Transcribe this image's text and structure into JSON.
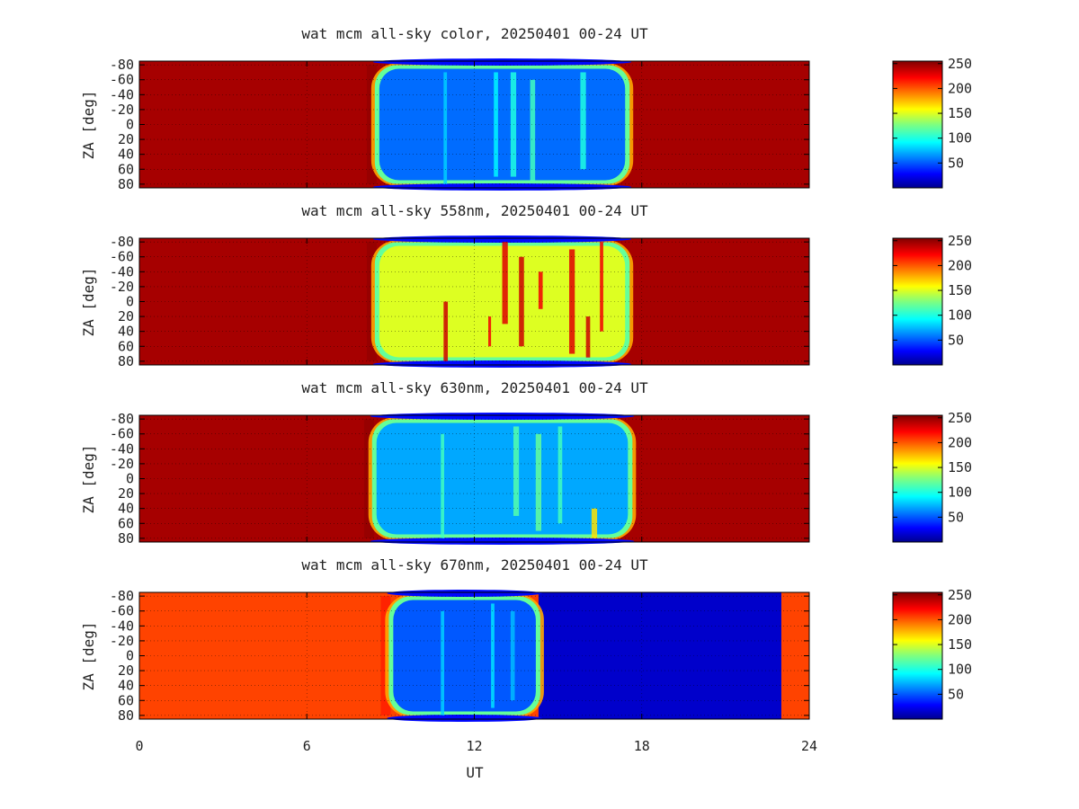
{
  "chart_data": [
    {
      "type": "heatmap",
      "title": "wat mcm all-sky color, 20250401 00-24 UT",
      "ylabel": "ZA [deg]",
      "xlim": [
        0,
        24
      ],
      "ylim": [
        -85,
        85
      ],
      "yticks": [
        "-80",
        "-60",
        "-40",
        "-20",
        "0",
        "20",
        "40",
        "60",
        "80"
      ],
      "colorbar": {
        "range": [
          0,
          255
        ],
        "ticks": [
          "250",
          "200",
          "150",
          "100",
          "50"
        ]
      },
      "outside_value": 245,
      "night_start": 8.5,
      "night_end": 17.5,
      "night_value": 55,
      "streaks": [
        {
          "x": 10.9,
          "w": 0.12,
          "y0": -70,
          "y1": 80,
          "v": 80
        },
        {
          "x": 12.7,
          "w": 0.15,
          "y0": -70,
          "y1": 70,
          "v": 90
        },
        {
          "x": 13.3,
          "w": 0.2,
          "y0": -70,
          "y1": 70,
          "v": 100
        },
        {
          "x": 14.0,
          "w": 0.18,
          "y0": -60,
          "y1": 75,
          "v": 110
        },
        {
          "x": 15.8,
          "w": 0.2,
          "y0": -70,
          "y1": 60,
          "v": 100
        }
      ]
    },
    {
      "type": "heatmap",
      "title": "wat mcm all-sky 558nm, 20250401 00-24 UT",
      "ylabel": "ZA [deg]",
      "xlim": [
        0,
        24
      ],
      "ylim": [
        -85,
        85
      ],
      "yticks": [
        "-80",
        "-60",
        "-40",
        "-20",
        "0",
        "20",
        "40",
        "60",
        "80"
      ],
      "colorbar": {
        "range": [
          0,
          255
        ],
        "ticks": [
          "250",
          "200",
          "150",
          "100",
          "50"
        ]
      },
      "outside_value": 245,
      "night_start": 8.5,
      "night_end": 17.5,
      "night_value": 150,
      "streaks": [
        {
          "x": 10.9,
          "w": 0.15,
          "y0": 0,
          "y1": 80,
          "v": 235
        },
        {
          "x": 12.5,
          "w": 0.1,
          "y0": 20,
          "y1": 60,
          "v": 225
        },
        {
          "x": 13.0,
          "w": 0.2,
          "y0": -80,
          "y1": 30,
          "v": 230
        },
        {
          "x": 13.6,
          "w": 0.18,
          "y0": -60,
          "y1": 60,
          "v": 235
        },
        {
          "x": 14.3,
          "w": 0.15,
          "y0": -40,
          "y1": 10,
          "v": 225
        },
        {
          "x": 15.4,
          "w": 0.2,
          "y0": -70,
          "y1": 70,
          "v": 230
        },
        {
          "x": 16.0,
          "w": 0.15,
          "y0": 20,
          "y1": 75,
          "v": 235
        },
        {
          "x": 16.5,
          "w": 0.12,
          "y0": -80,
          "y1": 40,
          "v": 225
        }
      ]
    },
    {
      "type": "heatmap",
      "title": "wat mcm all-sky 630nm, 20250401 00-24 UT",
      "ylabel": "ZA [deg]",
      "xlim": [
        0,
        24
      ],
      "ylim": [
        -85,
        85
      ],
      "yticks": [
        "-80",
        "-60",
        "-40",
        "-20",
        "0",
        "20",
        "40",
        "60",
        "80"
      ],
      "colorbar": {
        "range": [
          0,
          255
        ],
        "ticks": [
          "250",
          "200",
          "150",
          "100",
          "50"
        ]
      },
      "outside_value": 245,
      "night_start": 8.4,
      "night_end": 17.6,
      "night_value": 70,
      "streaks": [
        {
          "x": 10.8,
          "w": 0.12,
          "y0": -60,
          "y1": 80,
          "v": 110
        },
        {
          "x": 13.4,
          "w": 0.2,
          "y0": -70,
          "y1": 50,
          "v": 115
        },
        {
          "x": 14.2,
          "w": 0.2,
          "y0": -60,
          "y1": 70,
          "v": 120
        },
        {
          "x": 15.0,
          "w": 0.15,
          "y0": -70,
          "y1": 60,
          "v": 110
        },
        {
          "x": 16.2,
          "w": 0.2,
          "y0": 40,
          "y1": 80,
          "v": 165
        }
      ]
    },
    {
      "type": "heatmap",
      "title": "wat mcm all-sky 670nm, 20250401 00-24 UT",
      "ylabel": "ZA [deg]",
      "xlabel": "UT",
      "xlim": [
        0,
        24
      ],
      "ylim": [
        -85,
        85
      ],
      "xticks": [
        "0",
        "6",
        "12",
        "18",
        "24"
      ],
      "yticks": [
        "-80",
        "-60",
        "-40",
        "-20",
        "0",
        "20",
        "40",
        "60",
        "80"
      ],
      "colorbar": {
        "range": [
          0,
          255
        ],
        "ticks": [
          "250",
          "200",
          "150",
          "100",
          "50"
        ]
      },
      "outside_value": 205,
      "night_start": 9.0,
      "night_end": 14.3,
      "night_value": 50,
      "after_value": 15,
      "after_end": 23.0,
      "streaks": [
        {
          "x": 10.8,
          "w": 0.12,
          "y0": -60,
          "y1": 80,
          "v": 80
        },
        {
          "x": 12.6,
          "w": 0.12,
          "y0": -70,
          "y1": 70,
          "v": 85
        },
        {
          "x": 13.3,
          "w": 0.15,
          "y0": -60,
          "y1": 60,
          "v": 75
        }
      ]
    }
  ]
}
